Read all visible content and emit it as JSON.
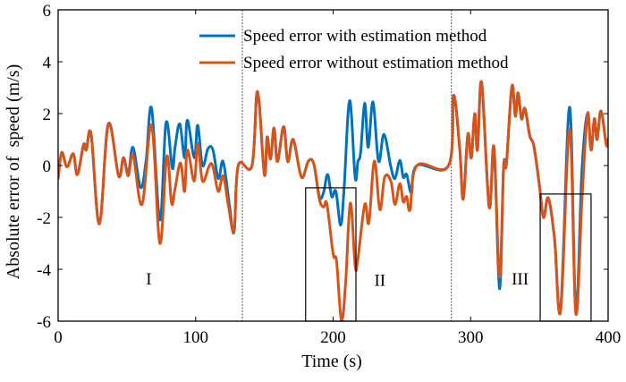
{
  "chart_data": {
    "type": "line",
    "title": "",
    "xlabel": "Time (s)",
    "ylabel": "Absolute error of  speed (m/s)",
    "xlim": [
      0,
      400
    ],
    "ylim": [
      -6,
      6
    ],
    "xticks": [
      0,
      100,
      200,
      300,
      400
    ],
    "yticks": [
      -6,
      -4,
      -2,
      0,
      2,
      4,
      6
    ],
    "xtick_labels": [
      "0",
      "100",
      "200",
      "300",
      "400"
    ],
    "ytick_labels": [
      "-6",
      "-4",
      "-2",
      "0",
      "2",
      "4",
      "6"
    ],
    "grid": false,
    "legend_position": "top-center",
    "series": [
      {
        "name": "Speed error with estimation method",
        "color": "#0072BD",
        "points": [
          [
            0,
            -0.5
          ],
          [
            2.6,
            0.5
          ],
          [
            6.5,
            -0.05
          ],
          [
            11,
            0.45
          ],
          [
            14,
            -0.35
          ],
          [
            18.5,
            0.8
          ],
          [
            20.5,
            0.6
          ],
          [
            24,
            1.2
          ],
          [
            30,
            -2.25
          ],
          [
            36.5,
            1.6
          ],
          [
            44,
            -0.4
          ],
          [
            47.5,
            0.3
          ],
          [
            51,
            -0.3
          ],
          [
            54.5,
            0.7
          ],
          [
            60,
            -0.85
          ],
          [
            64,
            0.2
          ],
          [
            68,
            2.2
          ],
          [
            74,
            -2.1
          ],
          [
            78.5,
            1.65
          ],
          [
            83,
            -0.1
          ],
          [
            85,
            0.7
          ],
          [
            88.5,
            1.6
          ],
          [
            92,
            0.3
          ],
          [
            94,
            1.75
          ],
          [
            99,
            0.3
          ],
          [
            101.5,
            1.55
          ],
          [
            105,
            0.0
          ],
          [
            109,
            0.65
          ],
          [
            112.6,
            0.6
          ],
          [
            116.5,
            -0.5
          ],
          [
            120,
            0.15
          ],
          [
            124.5,
            -1.5
          ],
          [
            128,
            -2.55
          ],
          [
            131,
            0
          ],
          [
            141,
            0
          ],
          [
            145,
            2.85
          ],
          [
            150,
            -0.35
          ],
          [
            152,
            1.1
          ],
          [
            154.5,
            0.25
          ],
          [
            157,
            1.45
          ],
          [
            159.5,
            0.15
          ],
          [
            164,
            1.5
          ],
          [
            167,
            0.15
          ],
          [
            171,
            1.0
          ],
          [
            177,
            -0.45
          ],
          [
            182,
            0.17
          ],
          [
            186,
            0.05
          ],
          [
            190,
            -1.2
          ],
          [
            193,
            -1.05
          ],
          [
            196,
            -0.35
          ],
          [
            199,
            -1.2
          ],
          [
            202,
            -1.0
          ],
          [
            205.5,
            -2.3
          ],
          [
            208,
            -0.85
          ],
          [
            212,
            2.5
          ],
          [
            216,
            -0.45
          ],
          [
            218,
            0.15
          ],
          [
            220,
            0.5
          ],
          [
            223,
            2.4
          ],
          [
            225.5,
            0.7
          ],
          [
            229,
            2.45
          ],
          [
            233,
            0.17
          ],
          [
            237,
            1.2
          ],
          [
            242,
            -0.05
          ],
          [
            245,
            -0.5
          ],
          [
            248.5,
            0.2
          ],
          [
            251,
            -0.45
          ],
          [
            253.5,
            -0.35
          ],
          [
            257,
            -1.05
          ],
          [
            261,
            0
          ],
          [
            284,
            0
          ],
          [
            287.5,
            2.7
          ],
          [
            292,
            0.7
          ],
          [
            294.6,
            -1.3
          ],
          [
            298,
            1.2
          ],
          [
            300.5,
            0.3
          ],
          [
            303,
            2.0
          ],
          [
            305,
            0.6
          ],
          [
            308,
            3.2
          ],
          [
            313.5,
            -1.6
          ],
          [
            317,
            0.7
          ],
          [
            321,
            -4.75
          ],
          [
            324,
            -0.07
          ],
          [
            326,
            0.05
          ],
          [
            330,
            3.05
          ],
          [
            332.5,
            1.9
          ],
          [
            334.5,
            2.8
          ],
          [
            337,
            1.8
          ],
          [
            339.5,
            2.2
          ],
          [
            343,
            1.15
          ],
          [
            346,
            0.75
          ],
          [
            350,
            -0.75
          ],
          [
            353,
            -2.0
          ],
          [
            356.5,
            -1.25
          ],
          [
            361,
            -2.8
          ],
          [
            365.5,
            -5.5
          ],
          [
            372,
            2.25
          ],
          [
            376.5,
            -5.6
          ],
          [
            381,
            -0.15
          ],
          [
            385,
            2.0
          ],
          [
            387.6,
            0.6
          ],
          [
            390,
            1.8
          ],
          [
            392,
            1.0
          ],
          [
            394.8,
            2.1
          ],
          [
            398.7,
            0.8
          ],
          [
            400,
            1.0
          ]
        ]
      },
      {
        "name": "Speed error without estimation method",
        "color": "#D95319",
        "points": [
          [
            0,
            -0.5
          ],
          [
            2.6,
            0.5
          ],
          [
            6.5,
            -0.05
          ],
          [
            11,
            0.45
          ],
          [
            14,
            -0.35
          ],
          [
            18.5,
            0.8
          ],
          [
            20.5,
            0.6
          ],
          [
            24,
            1.2
          ],
          [
            30,
            -2.25
          ],
          [
            36.5,
            1.6
          ],
          [
            44,
            -0.4
          ],
          [
            47.5,
            0.3
          ],
          [
            51,
            -0.4
          ],
          [
            54.5,
            0.4
          ],
          [
            61,
            -1.5
          ],
          [
            68,
            1.55
          ],
          [
            74,
            -3.0
          ],
          [
            79,
            0.35
          ],
          [
            82.5,
            -1.45
          ],
          [
            85,
            -0.9
          ],
          [
            89,
            0.1
          ],
          [
            92,
            -1.0
          ],
          [
            94,
            0.6
          ],
          [
            99,
            -0.6
          ],
          [
            101.5,
            0.85
          ],
          [
            105,
            -0.6
          ],
          [
            110,
            0.0
          ],
          [
            112.6,
            -0.05
          ],
          [
            116.5,
            -1.0
          ],
          [
            120,
            -0.4
          ],
          [
            124,
            -1.6
          ],
          [
            128,
            -2.5
          ],
          [
            131,
            0
          ],
          [
            141,
            0
          ],
          [
            145,
            2.85
          ],
          [
            150,
            -0.35
          ],
          [
            152,
            1.1
          ],
          [
            154.5,
            0.25
          ],
          [
            157,
            1.45
          ],
          [
            159.5,
            0.15
          ],
          [
            164,
            1.5
          ],
          [
            167,
            0.15
          ],
          [
            171,
            1.0
          ],
          [
            177,
            -0.45
          ],
          [
            182,
            0.17
          ],
          [
            186,
            0.05
          ],
          [
            190,
            -1.3
          ],
          [
            193,
            -1.6
          ],
          [
            195.5,
            -1.5
          ],
          [
            200,
            -3.4
          ],
          [
            202.5,
            -3.7
          ],
          [
            206,
            -5.95
          ],
          [
            209,
            -4.6
          ],
          [
            212.5,
            -1.45
          ],
          [
            216,
            -3.85
          ],
          [
            218,
            -3.6
          ],
          [
            223,
            -1.5
          ],
          [
            226,
            -2.2
          ],
          [
            230,
            0.17
          ],
          [
            234,
            -1.7
          ],
          [
            237.5,
            -0.45
          ],
          [
            242,
            -0.6
          ],
          [
            245,
            -1.5
          ],
          [
            248.5,
            -0.7
          ],
          [
            251,
            -1.4
          ],
          [
            253.5,
            -1.2
          ],
          [
            256,
            -1.7
          ],
          [
            261,
            0
          ],
          [
            284,
            0
          ],
          [
            287.5,
            2.7
          ],
          [
            292,
            0.7
          ],
          [
            294.6,
            -1.3
          ],
          [
            298,
            1.2
          ],
          [
            300.5,
            0.3
          ],
          [
            303,
            2.0
          ],
          [
            305,
            0.6
          ],
          [
            308,
            3.2
          ],
          [
            313.5,
            -1.6
          ],
          [
            317,
            0.7
          ],
          [
            321,
            -4.3
          ],
          [
            324,
            -0.07
          ],
          [
            326,
            0.05
          ],
          [
            330,
            3.05
          ],
          [
            332.5,
            1.9
          ],
          [
            334.5,
            2.8
          ],
          [
            337,
            1.8
          ],
          [
            339.5,
            2.2
          ],
          [
            343,
            1.15
          ],
          [
            346,
            0.75
          ],
          [
            350,
            -0.75
          ],
          [
            353,
            -2.0
          ],
          [
            356.5,
            -1.25
          ],
          [
            361,
            -2.8
          ],
          [
            365.5,
            -5.6
          ],
          [
            372,
            1.4
          ],
          [
            376.5,
            -5.7
          ],
          [
            381,
            -1.3
          ],
          [
            385,
            2.0
          ],
          [
            387.6,
            0.6
          ],
          [
            390,
            1.8
          ],
          [
            392,
            1.0
          ],
          [
            394.8,
            2.1
          ],
          [
            398.7,
            0.8
          ],
          [
            400,
            1.0
          ]
        ]
      }
    ],
    "vertical_dashed_lines": [
      134,
      286
    ],
    "highlight_boxes": [
      {
        "t_range": [
          180,
          216.6
        ],
        "v_range": [
          -6,
          -0.86
        ]
      },
      {
        "t_range": [
          350.6,
          387.6
        ],
        "v_range": [
          -6,
          -1.1
        ]
      }
    ],
    "region_labels": [
      {
        "text": "I",
        "t": 66,
        "v": -4.35
      },
      {
        "text": "II",
        "t": 234,
        "v": -4.4
      },
      {
        "text": "III",
        "t": 336,
        "v": -4.35
      }
    ]
  }
}
